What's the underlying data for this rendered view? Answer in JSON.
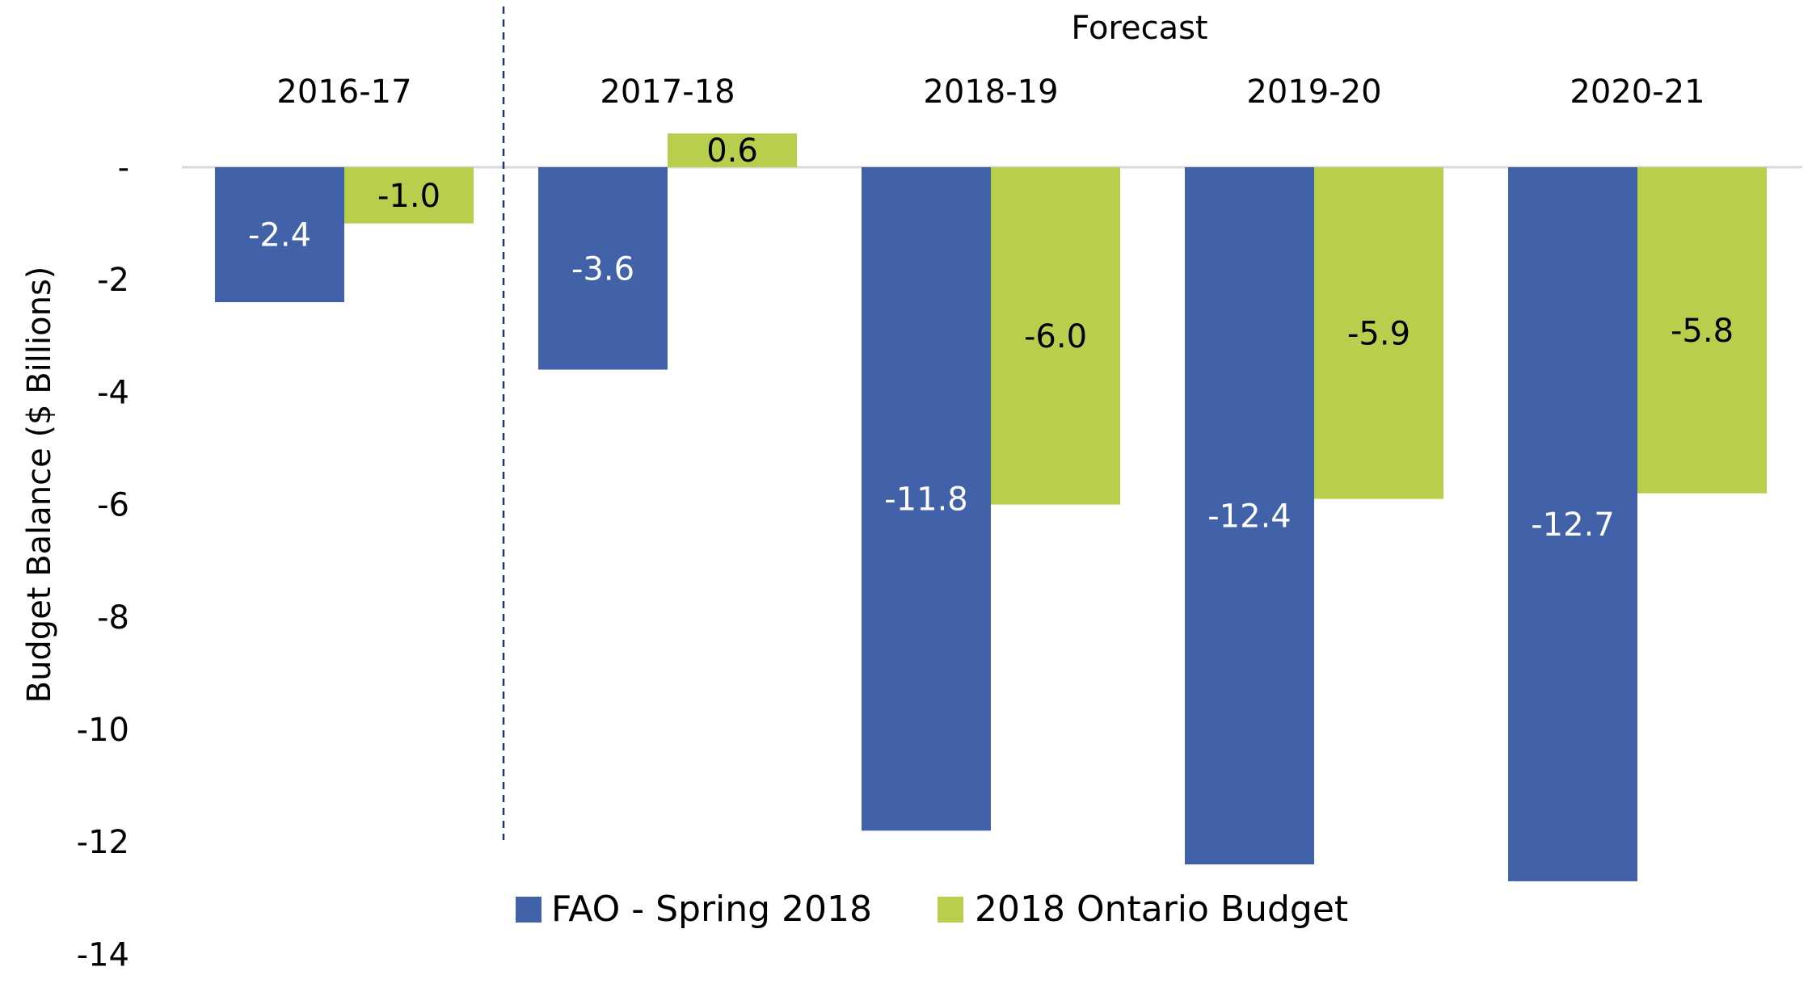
{
  "chart_data": {
    "type": "bar",
    "title": "",
    "xlabel": "",
    "ylabel": "Budget Balance ($ Billions)",
    "ylim": [
      -14,
      0
    ],
    "yticks": [
      "-",
      "-2",
      "-4",
      "-6",
      "-8",
      "-10",
      "-12",
      "-14"
    ],
    "categories": [
      "2016-17",
      "2017-18",
      "2018-19",
      "2019-20",
      "2020-21"
    ],
    "series": [
      {
        "name": "FAO - Spring 2018",
        "color": "#4161A8",
        "label_color": "#ffffff",
        "values": [
          -2.4,
          -3.6,
          -11.8,
          -12.4,
          -12.7
        ],
        "labels": [
          "-2.4",
          "-3.6",
          "-11.8",
          "-12.4",
          "-12.7"
        ]
      },
      {
        "name": "2018 Ontario Budget",
        "color": "#B8CF4D",
        "label_color": "#000000",
        "values": [
          -1.0,
          0.6,
          -6.0,
          -5.9,
          -5.8
        ],
        "labels": [
          "-1.0",
          "0.6",
          "-6.0",
          "-5.9",
          "-5.8"
        ]
      }
    ],
    "annotation": "Forecast",
    "legend_position": "bottom",
    "grid": false
  }
}
